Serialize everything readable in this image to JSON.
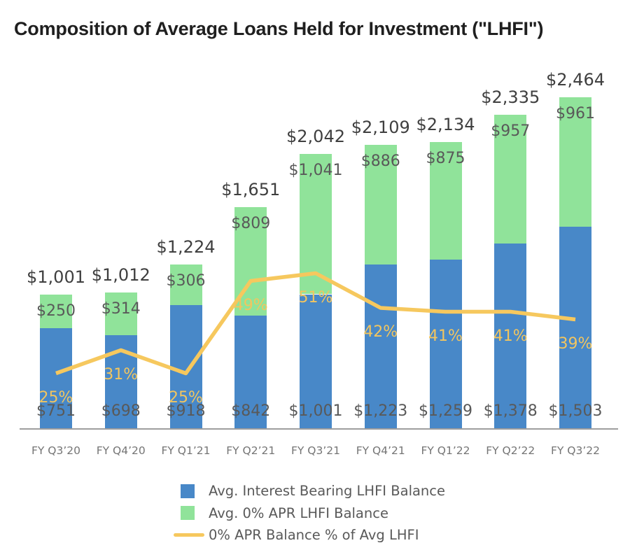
{
  "title": "Composition of Average Loans Held for Investment (\"LHFI\")",
  "colors": {
    "interest_bearing": "#4888c8",
    "zero_apr": "#90e39a",
    "line": "#f6c85e",
    "pct_label": "#f2c55f",
    "total_label": "#3f3f3f",
    "segment_label": "#595959",
    "axis_label": "#757575",
    "title_text": "#1f1f1f"
  },
  "legend": {
    "items": [
      {
        "swatch": "square",
        "color_key": "interest_bearing",
        "label": "Avg. Interest Bearing LHFI Balance"
      },
      {
        "swatch": "square",
        "color_key": "zero_apr",
        "label": "Avg. 0% APR LHFI Balance"
      },
      {
        "swatch": "line",
        "color_key": "line",
        "label": "0% APR Balance % of Avg LHFI"
      }
    ]
  },
  "chart_data": {
    "type": "bar",
    "stacked": true,
    "grid": false,
    "legend_position": "bottom",
    "title": "Composition of Average Loans Held for Investment (\"LHFI\")",
    "xlabel": "",
    "ylabel": "",
    "categories": [
      "FY Q3’20",
      "FY Q4’20",
      "FY Q1’21",
      "FY Q2’21",
      "FY Q3’21",
      "FY Q4’21",
      "FY Q1’22",
      "FY Q2’22",
      "FY Q3’22"
    ],
    "series": [
      {
        "name": "Avg. Interest Bearing LHFI Balance",
        "values": [
          751,
          698,
          918,
          842,
          1001,
          1223,
          1259,
          1378,
          1503
        ],
        "labels": [
          "$751",
          "$698",
          "$918",
          "$842",
          "$1,001",
          "$1,223",
          "$1,259",
          "$1,378",
          "$1,503"
        ]
      },
      {
        "name": "Avg. 0% APR LHFI Balance",
        "values": [
          250,
          314,
          306,
          809,
          1041,
          886,
          875,
          957,
          961
        ],
        "labels": [
          "$250",
          "$314",
          "$306",
          "$809",
          "$1,041",
          "$886",
          "$875",
          "$957",
          "$961"
        ]
      }
    ],
    "totals": [
      1001,
      1012,
      1224,
      1651,
      2042,
      2109,
      2134,
      2335,
      2464
    ],
    "total_labels": [
      "$1,001",
      "$1,012",
      "$1,224",
      "$1,651",
      "$2,042",
      "$2,109",
      "$2,134",
      "$2,335",
      "$2,464"
    ],
    "line_series": {
      "name": "0% APR Balance % of Avg LHFI",
      "values": [
        25,
        31,
        25,
        49,
        51,
        42,
        41,
        41,
        39
      ],
      "labels": [
        "25%",
        "31%",
        "25%",
        "49%",
        "51%",
        "42%",
        "41%",
        "41%",
        "39%"
      ]
    }
  }
}
